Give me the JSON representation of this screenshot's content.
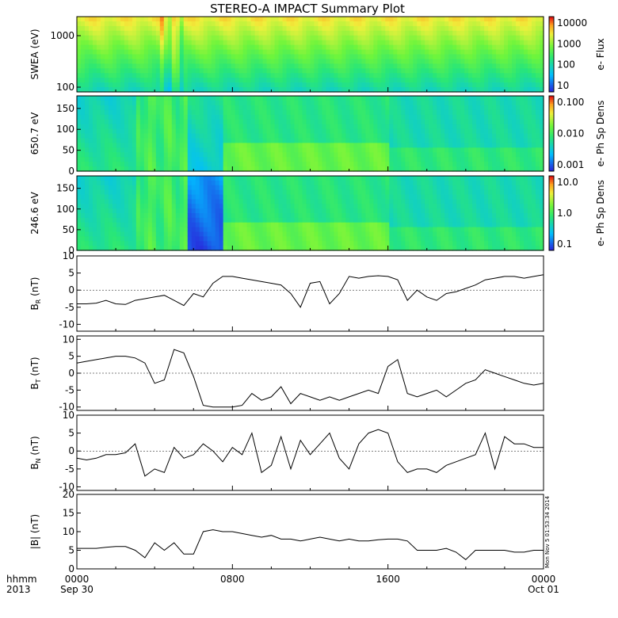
{
  "title": "STEREO-A IMPACT Summary Plot",
  "time_axis": {
    "corner_top": "hhmm",
    "corner_bottom": "2013",
    "ticks": [
      {
        "hour": 0,
        "top": "0000",
        "bottom": "Sep 30"
      },
      {
        "hour": 8,
        "top": "0800",
        "bottom": ""
      },
      {
        "hour": 16,
        "top": "1600",
        "bottom": ""
      },
      {
        "hour": 24,
        "top": "0000",
        "bottom": "Oct 01"
      }
    ],
    "range_hours": [
      0,
      24
    ]
  },
  "timestamp": "Mon Nov  5 01:53:34 2014",
  "chart_data": [
    {
      "type": "heatmap",
      "ylabel": "SWEA (eV)",
      "yscale": "log",
      "yticks": [
        "100",
        "1000"
      ],
      "colorbar": {
        "label": "e- Flux",
        "scale": "log",
        "ticks": [
          "10",
          "100",
          "1000",
          "10000"
        ]
      }
    },
    {
      "type": "heatmap",
      "ylabel": "650.7 eV",
      "yrange": [
        0,
        180
      ],
      "yticks": [
        "0",
        "50",
        "100",
        "150"
      ],
      "colorbar": {
        "label": "e- Ph Sp Dens",
        "scale": "log",
        "ticks": [
          "0.001",
          "0.010",
          "0.100"
        ]
      }
    },
    {
      "type": "heatmap",
      "ylabel": "246.6 eV",
      "yrange": [
        0,
        180
      ],
      "yticks": [
        "0",
        "50",
        "100",
        "150"
      ],
      "colorbar": {
        "label": "e- Ph Sp Dens",
        "scale": "log",
        "ticks": [
          "0.1",
          "1.0",
          "10.0"
        ]
      }
    },
    {
      "type": "line",
      "ylabel": "B_R (nT)",
      "ylabel_main": "B",
      "ylabel_sub": "R",
      "ylabel_unit": " (nT)",
      "ylim": [
        -12,
        10
      ],
      "yticks": [
        "-10",
        "-5",
        "0",
        "5",
        "10"
      ],
      "x": [
        0,
        0.5,
        1,
        1.5,
        2,
        2.5,
        3,
        3.5,
        4,
        4.5,
        5,
        5.5,
        6,
        6.5,
        7,
        7.5,
        8,
        8.5,
        9,
        9.5,
        10,
        10.5,
        11,
        11.5,
        12,
        12.5,
        13,
        13.5,
        14,
        14.5,
        15,
        15.5,
        16,
        16.5,
        17,
        17.5,
        18,
        18.5,
        19,
        19.5,
        20,
        20.5,
        21,
        21.5,
        22,
        22.5,
        23,
        23.5,
        24
      ],
      "y": [
        -4,
        -4,
        -3.8,
        -3,
        -4,
        -4.2,
        -3,
        -2.5,
        -2,
        -1.5,
        -3,
        -4.5,
        -1,
        -2,
        2,
        4,
        4,
        3.5,
        3,
        2.5,
        2,
        1.5,
        -1,
        -5,
        2,
        2.5,
        -4,
        -1,
        4,
        3.5,
        4,
        4.2,
        4,
        3,
        -3,
        0,
        -2,
        -3,
        -1,
        -0.5,
        0.5,
        1.5,
        3,
        3.5,
        4,
        4,
        3.5,
        4,
        4.5
      ]
    },
    {
      "type": "line",
      "ylabel": "B_T (nT)",
      "ylabel_main": "B",
      "ylabel_sub": "T",
      "ylabel_unit": " (nT)",
      "ylim": [
        -11,
        11
      ],
      "yticks": [
        "-10",
        "-5",
        "0",
        "5",
        "10"
      ],
      "x": [
        0,
        0.5,
        1,
        1.5,
        2,
        2.5,
        3,
        3.5,
        4,
        4.5,
        5,
        5.5,
        6,
        6.5,
        7,
        7.5,
        8,
        8.5,
        9,
        9.5,
        10,
        10.5,
        11,
        11.5,
        12,
        12.5,
        13,
        13.5,
        14,
        14.5,
        15,
        15.5,
        16,
        16.5,
        17,
        17.5,
        18,
        18.5,
        19,
        19.5,
        20,
        20.5,
        21,
        21.5,
        22,
        22.5,
        23,
        23.5,
        24
      ],
      "y": [
        3,
        3.5,
        4,
        4.5,
        5,
        5,
        4.5,
        3,
        -3,
        -2,
        7,
        6,
        -1,
        -9.5,
        -10,
        -10,
        -10,
        -9.5,
        -6,
        -8,
        -7,
        -4,
        -9,
        -6,
        -7,
        -8,
        -7,
        -8,
        -7,
        -6,
        -5,
        -6,
        2,
        4,
        -6,
        -7,
        -6,
        -5,
        -7,
        -5,
        -3,
        -2,
        1,
        0,
        -1,
        -2,
        -3,
        -3.5,
        -3
      ]
    },
    {
      "type": "line",
      "ylabel": "B_N (nT)",
      "ylabel_main": "B",
      "ylabel_sub": "N",
      "ylabel_unit": " (nT)",
      "ylim": [
        -11,
        10
      ],
      "yticks": [
        "-10",
        "-5",
        "0",
        "5",
        "10"
      ],
      "x": [
        0,
        0.5,
        1,
        1.5,
        2,
        2.5,
        3,
        3.5,
        4,
        4.5,
        5,
        5.5,
        6,
        6.5,
        7,
        7.5,
        8,
        8.5,
        9,
        9.5,
        10,
        10.5,
        11,
        11.5,
        12,
        12.5,
        13,
        13.5,
        14,
        14.5,
        15,
        15.5,
        16,
        16.5,
        17,
        17.5,
        18,
        18.5,
        19,
        19.5,
        20,
        20.5,
        21,
        21.5,
        22,
        22.5,
        23,
        23.5,
        24
      ],
      "y": [
        -2,
        -2.5,
        -2,
        -1,
        -1,
        -0.5,
        2,
        -7,
        -5,
        -6,
        1,
        -2,
        -1,
        2,
        0,
        -3,
        1,
        -1,
        5,
        -6,
        -4,
        4,
        -5,
        3,
        -1,
        2,
        5,
        -2,
        -5,
        2,
        5,
        6,
        5,
        -3,
        -6,
        -5,
        -5,
        -6,
        -4,
        -3,
        -2,
        -1,
        5,
        -5,
        4,
        2,
        2,
        1,
        1
      ]
    },
    {
      "type": "line",
      "ylabel": "|B| (nT)",
      "ylabel_main": "|B| (nT)",
      "ylabel_sub": "",
      "ylabel_unit": "",
      "ylim": [
        0,
        20
      ],
      "yticks": [
        "0",
        "5",
        "10",
        "15",
        "20"
      ],
      "x": [
        0,
        0.5,
        1,
        1.5,
        2,
        2.5,
        3,
        3.5,
        4,
        4.5,
        5,
        5.5,
        6,
        6.5,
        7,
        7.5,
        8,
        8.5,
        9,
        9.5,
        10,
        10.5,
        11,
        11.5,
        12,
        12.5,
        13,
        13.5,
        14,
        14.5,
        15,
        15.5,
        16,
        16.5,
        17,
        17.5,
        18,
        18.5,
        19,
        19.5,
        20,
        20.5,
        21,
        21.5,
        22,
        22.5,
        23,
        23.5,
        24
      ],
      "y": [
        5.5,
        5.5,
        5.5,
        5.8,
        6,
        6,
        5,
        3,
        7,
        5,
        7,
        4,
        4,
        10,
        10.5,
        10,
        10,
        9.5,
        9,
        8.5,
        9,
        8,
        8,
        7.5,
        8,
        8.5,
        8,
        7.5,
        8,
        7.5,
        7.5,
        7.8,
        8,
        8,
        7.5,
        5,
        5,
        5,
        5.5,
        4.5,
        2.5,
        5,
        5,
        5,
        5,
        4.5,
        4.5,
        5,
        5
      ]
    }
  ]
}
